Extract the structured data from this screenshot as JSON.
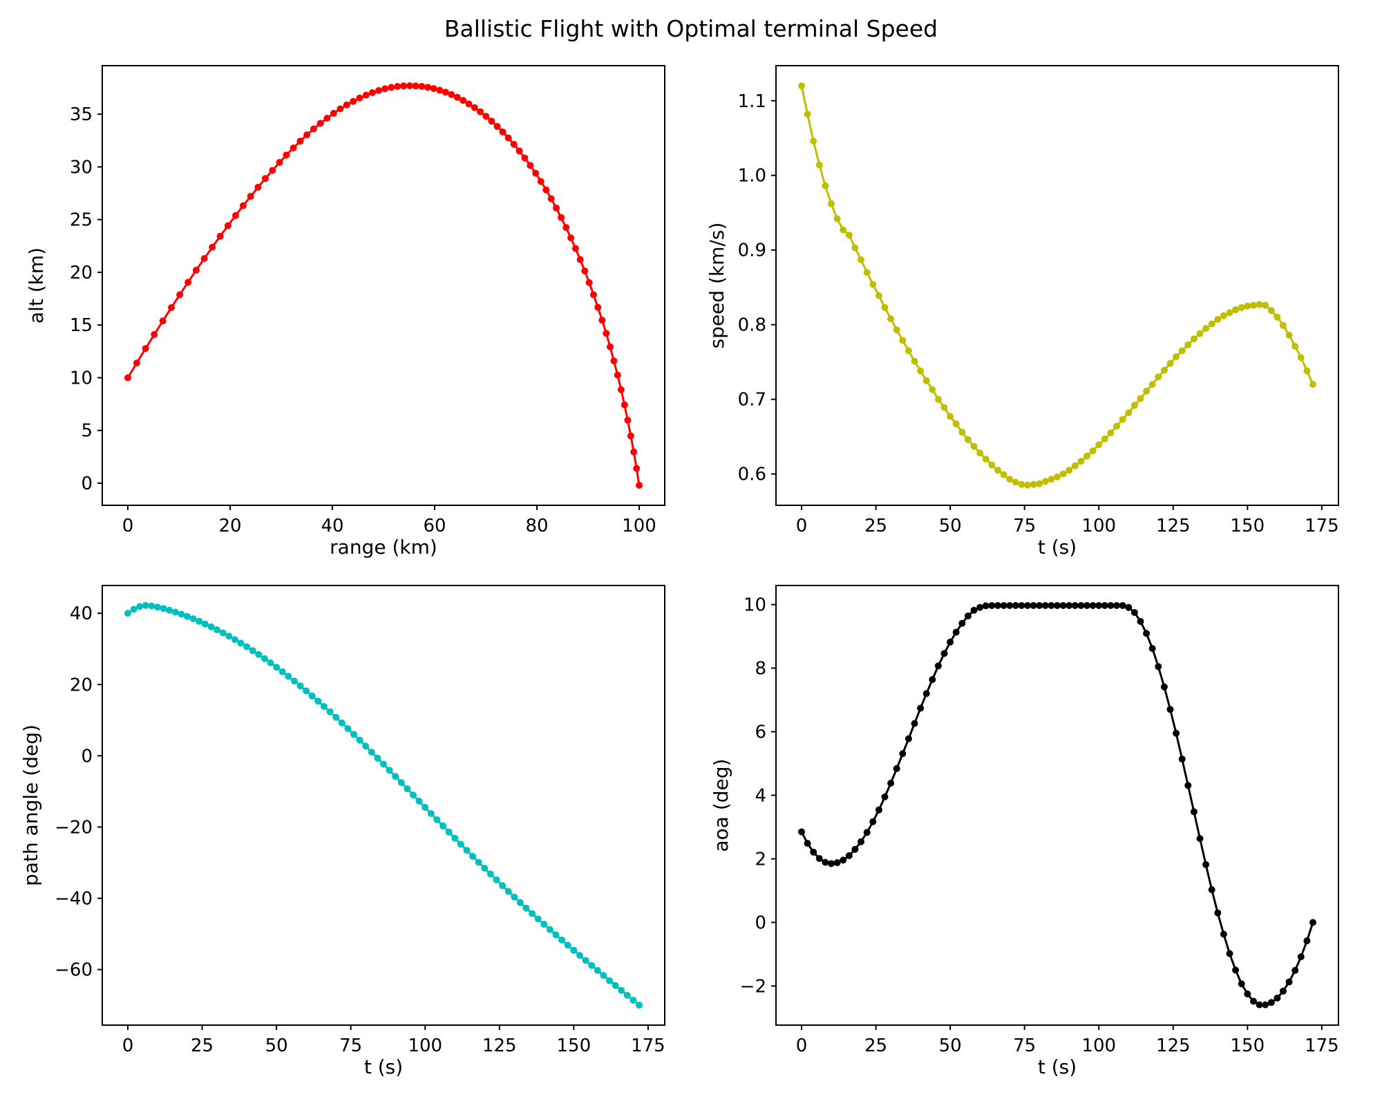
{
  "figure": {
    "title": "Ballistic Flight with Optimal terminal Speed",
    "background_color": "#ffffff",
    "layout": "2x2 subplots, no grid, no legend, box spines, markers on lines"
  },
  "chart_data": [
    {
      "id": "alt-vs-range",
      "type": "line",
      "title": "",
      "xlabel": "range (km)",
      "ylabel": "alt (km)",
      "line_color": "#ff0000",
      "marker": "o",
      "xlim": [
        -5,
        105
      ],
      "ylim": [
        -2.1,
        39.6
      ],
      "xticks": [
        0,
        20,
        40,
        60,
        80,
        100
      ],
      "xtick_labels": [
        "0",
        "20",
        "40",
        "60",
        "80",
        "100"
      ],
      "yticks": [
        0,
        5,
        10,
        15,
        20,
        25,
        30,
        35
      ],
      "ytick_labels": [
        "0",
        "5",
        "10",
        "15",
        "20",
        "25",
        "30",
        "35"
      ],
      "x": [
        0.0,
        1.74,
        3.46,
        5.17,
        6.85,
        8.51,
        10.15,
        11.77,
        13.37,
        14.95,
        16.51,
        18.05,
        19.58,
        21.08,
        22.56,
        24.02,
        25.46,
        26.88,
        28.28,
        29.65,
        31.01,
        32.36,
        33.7,
        35.02,
        36.34,
        37.66,
        38.96,
        40.25,
        41.54,
        42.81,
        44.08,
        45.34,
        46.6,
        47.84,
        49.07,
        50.3,
        51.52,
        52.73,
        53.93,
        55.12,
        56.31,
        57.48,
        58.66,
        59.82,
        60.98,
        62.14,
        63.28,
        64.43,
        65.56,
        66.69,
        67.81,
        68.93,
        70.04,
        71.14,
        72.24,
        73.33,
        74.42,
        75.5,
        76.57,
        77.64,
        78.7,
        79.75,
        80.78,
        81.8,
        82.8,
        83.78,
        84.75,
        85.7,
        86.64,
        87.56,
        88.47,
        89.35,
        90.23,
        91.08,
        91.92,
        92.75,
        93.55,
        94.32,
        95.06,
        95.78,
        96.47,
        97.13,
        97.76,
        98.36,
        98.94,
        99.48,
        100.0
      ],
      "y": [
        10.0,
        11.4,
        12.77,
        14.1,
        15.39,
        16.65,
        17.87,
        19.05,
        20.2,
        21.31,
        22.38,
        23.42,
        24.42,
        25.39,
        26.32,
        27.21,
        28.07,
        28.89,
        29.67,
        30.42,
        31.13,
        31.8,
        32.44,
        33.04,
        33.6,
        34.13,
        34.62,
        35.08,
        35.5,
        35.88,
        36.22,
        36.53,
        36.81,
        37.04,
        37.24,
        37.41,
        37.54,
        37.63,
        37.68,
        37.7,
        37.68,
        37.63,
        37.55,
        37.43,
        37.27,
        37.08,
        36.86,
        36.6,
        36.31,
        35.98,
        35.62,
        35.23,
        34.8,
        34.34,
        33.84,
        33.31,
        32.74,
        32.14,
        31.51,
        30.84,
        30.13,
        29.4,
        28.62,
        27.82,
        26.98,
        26.1,
        25.19,
        24.25,
        23.27,
        22.26,
        21.21,
        20.13,
        19.02,
        17.87,
        16.68,
        15.46,
        14.21,
        12.93,
        11.6,
        10.25,
        8.86,
        7.43,
        5.97,
        4.48,
        2.96,
        1.4,
        -0.2
      ]
    },
    {
      "id": "speed-vs-t",
      "type": "line",
      "title": "",
      "xlabel": "t (s)",
      "ylabel": "speed (km/s)",
      "line_color": "#bfbf00",
      "marker": "o",
      "xlim": [
        -8.6,
        180.6
      ],
      "ylim": [
        0.558,
        1.147
      ],
      "xticks": [
        0,
        25,
        50,
        75,
        100,
        125,
        150,
        175
      ],
      "xtick_labels": [
        "0",
        "25",
        "50",
        "75",
        "100",
        "125",
        "150",
        "175"
      ],
      "yticks": [
        0.6,
        0.7,
        0.8,
        0.9,
        1.0,
        1.1
      ],
      "ytick_labels": [
        "0.6",
        "0.7",
        "0.8",
        "0.9",
        "1.0",
        "1.1"
      ],
      "x": [
        0,
        2,
        4,
        6,
        8,
        10,
        12,
        14,
        16,
        18,
        20,
        22,
        24,
        26,
        28,
        30,
        32,
        34,
        36,
        38,
        40,
        42,
        44,
        46,
        48,
        50,
        52,
        54,
        56,
        58,
        60,
        62,
        64,
        66,
        68,
        70,
        72,
        74,
        76,
        78,
        80,
        82,
        84,
        86,
        88,
        90,
        92,
        94,
        96,
        98,
        100,
        102,
        104,
        106,
        108,
        110,
        112,
        114,
        116,
        118,
        120,
        122,
        124,
        126,
        128,
        130,
        132,
        134,
        136,
        138,
        140,
        142,
        144,
        146,
        148,
        150,
        152,
        154,
        156,
        158,
        160,
        162,
        164,
        166,
        168,
        170,
        172
      ],
      "y": [
        1.12,
        1.082,
        1.046,
        1.014,
        0.986,
        0.962,
        0.942,
        0.927,
        0.92,
        0.903,
        0.887,
        0.87,
        0.854,
        0.839,
        0.823,
        0.808,
        0.793,
        0.779,
        0.765,
        0.751,
        0.738,
        0.725,
        0.713,
        0.7,
        0.689,
        0.677,
        0.667,
        0.656,
        0.646,
        0.637,
        0.628,
        0.62,
        0.612,
        0.605,
        0.599,
        0.593,
        0.589,
        0.586,
        0.585,
        0.586,
        0.587,
        0.59,
        0.593,
        0.596,
        0.6,
        0.605,
        0.611,
        0.617,
        0.624,
        0.631,
        0.639,
        0.647,
        0.655,
        0.664,
        0.673,
        0.682,
        0.692,
        0.701,
        0.711,
        0.72,
        0.73,
        0.739,
        0.748,
        0.757,
        0.765,
        0.773,
        0.781,
        0.788,
        0.795,
        0.801,
        0.807,
        0.812,
        0.816,
        0.82,
        0.823,
        0.825,
        0.826,
        0.827,
        0.826,
        0.819,
        0.81,
        0.799,
        0.786,
        0.771,
        0.756,
        0.738,
        0.72
      ]
    },
    {
      "id": "path-angle-vs-t",
      "type": "line",
      "title": "",
      "xlabel": "t (s)",
      "ylabel": "path angle (deg)",
      "line_color": "#00bfbf",
      "marker": "o",
      "xlim": [
        -8.6,
        180.6
      ],
      "ylim": [
        -75.6,
        47.8
      ],
      "xticks": [
        0,
        25,
        50,
        75,
        100,
        125,
        150,
        175
      ],
      "xtick_labels": [
        "0",
        "25",
        "50",
        "75",
        "100",
        "125",
        "150",
        "175"
      ],
      "yticks": [
        -60,
        -40,
        -20,
        0,
        20,
        40
      ],
      "ytick_labels": [
        "−60",
        "−40",
        "−20",
        "0",
        "20",
        "40"
      ],
      "x": [
        0,
        2,
        4,
        6,
        8,
        10,
        12,
        14,
        16,
        18,
        20,
        22,
        24,
        26,
        28,
        30,
        32,
        34,
        36,
        38,
        40,
        42,
        44,
        46,
        48,
        50,
        52,
        54,
        56,
        58,
        60,
        62,
        64,
        66,
        68,
        70,
        72,
        74,
        76,
        78,
        80,
        82,
        84,
        86,
        88,
        90,
        92,
        94,
        96,
        98,
        100,
        102,
        104,
        106,
        108,
        110,
        112,
        114,
        116,
        118,
        120,
        122,
        124,
        126,
        128,
        130,
        132,
        134,
        136,
        138,
        140,
        142,
        144,
        146,
        148,
        150,
        152,
        154,
        156,
        158,
        160,
        162,
        164,
        166,
        168,
        170,
        172
      ],
      "y": [
        40.0,
        41.1,
        41.9,
        42.2,
        42.06,
        41.74,
        41.33,
        40.86,
        40.33,
        39.75,
        39.13,
        38.46,
        37.74,
        36.99,
        36.19,
        35.36,
        34.49,
        33.57,
        32.62,
        31.62,
        30.6,
        29.52,
        28.42,
        27.27,
        26.09,
        24.87,
        23.61,
        22.31,
        20.98,
        19.62,
        18.23,
        16.8,
        15.34,
        13.85,
        12.34,
        10.8,
        9.23,
        7.64,
        6.03,
        4.4,
        2.71,
        1.03,
        -0.65,
        -2.36,
        -4.07,
        -5.79,
        -7.52,
        -9.26,
        -11.0,
        -12.74,
        -14.48,
        -16.22,
        -17.95,
        -19.69,
        -21.41,
        -23.13,
        -24.84,
        -26.54,
        -28.23,
        -29.9,
        -31.56,
        -33.21,
        -34.84,
        -36.45,
        -38.05,
        -39.64,
        -41.2,
        -42.75,
        -44.29,
        -45.8,
        -47.3,
        -48.79,
        -50.26,
        -51.72,
        -53.17,
        -54.6,
        -56.02,
        -57.44,
        -58.85,
        -60.25,
        -61.64,
        -63.13,
        -64.47,
        -65.85,
        -67.23,
        -68.61,
        -70.0
      ]
    },
    {
      "id": "aoa-vs-t",
      "type": "line",
      "title": "",
      "xlabel": "t (s)",
      "ylabel": "aoa (deg)",
      "line_color": "#000000",
      "marker": "o",
      "xlim": [
        -8.6,
        180.6
      ],
      "ylim": [
        -3.23,
        10.6
      ],
      "xticks": [
        0,
        25,
        50,
        75,
        100,
        125,
        150,
        175
      ],
      "xtick_labels": [
        "0",
        "25",
        "50",
        "75",
        "100",
        "125",
        "150",
        "175"
      ],
      "yticks": [
        -2,
        0,
        2,
        4,
        6,
        8,
        10
      ],
      "ytick_labels": [
        "−2",
        "0",
        "2",
        "4",
        "6",
        "8",
        "10"
      ],
      "x": [
        0,
        2,
        4,
        6,
        8,
        10,
        12,
        14,
        16,
        18,
        20,
        22,
        24,
        26,
        28,
        30,
        32,
        34,
        36,
        38,
        40,
        42,
        44,
        46,
        48,
        50,
        52,
        54,
        56,
        58,
        60,
        62,
        64,
        66,
        68,
        70,
        72,
        74,
        76,
        78,
        80,
        82,
        84,
        86,
        88,
        90,
        92,
        94,
        96,
        98,
        100,
        102,
        104,
        106,
        108,
        110,
        112,
        114,
        116,
        118,
        120,
        122,
        124,
        126,
        128,
        130,
        132,
        134,
        136,
        138,
        140,
        142,
        144,
        146,
        148,
        150,
        152,
        154,
        156,
        158,
        160,
        162,
        164,
        166,
        168,
        170,
        172
      ],
      "y": [
        2.85,
        2.49,
        2.21,
        2.01,
        1.89,
        1.85,
        1.88,
        1.96,
        2.1,
        2.3,
        2.54,
        2.83,
        3.17,
        3.54,
        3.95,
        4.38,
        4.84,
        5.31,
        5.78,
        6.26,
        6.74,
        7.2,
        7.64,
        8.07,
        8.46,
        8.82,
        9.13,
        9.41,
        9.64,
        9.82,
        9.91,
        9.96,
        9.97,
        9.97,
        9.97,
        9.97,
        9.97,
        9.97,
        9.97,
        9.97,
        9.97,
        9.97,
        9.97,
        9.97,
        9.97,
        9.97,
        9.97,
        9.97,
        9.97,
        9.97,
        9.97,
        9.97,
        9.97,
        9.97,
        9.97,
        9.91,
        9.75,
        9.47,
        9.09,
        8.62,
        8.05,
        7.41,
        6.7,
        5.95,
        5.14,
        4.31,
        3.48,
        2.64,
        1.82,
        1.03,
        0.3,
        -0.37,
        -0.98,
        -1.5,
        -1.93,
        -2.25,
        -2.48,
        -2.59,
        -2.59,
        -2.52,
        -2.38,
        -2.16,
        -1.87,
        -1.51,
        -1.08,
        -0.58,
        0.0
      ]
    }
  ]
}
